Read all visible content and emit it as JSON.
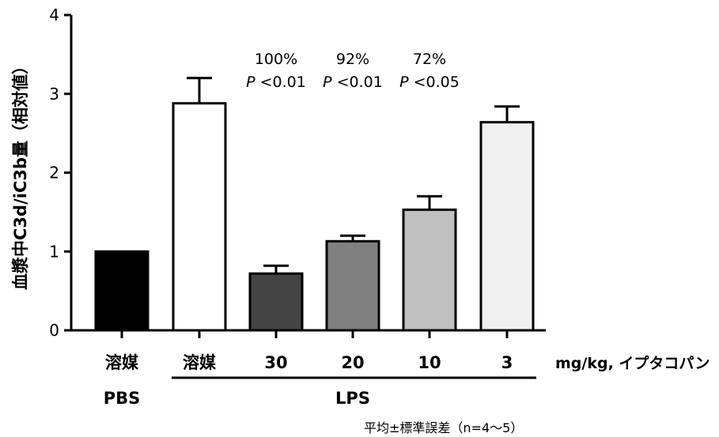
{
  "chart_data": {
    "type": "bar",
    "categories": [
      "溶媒",
      "溶媒",
      "30",
      "20",
      "10",
      "3"
    ],
    "values": [
      1.0,
      2.88,
      0.72,
      1.13,
      1.53,
      2.64
    ],
    "errors": [
      0,
      0.32,
      0.1,
      0.07,
      0.17,
      0.2
    ],
    "bar_colors": [
      "#000000",
      "#ffffff",
      "#444444",
      "#808080",
      "#c0c0c0",
      "#f0f0f0"
    ],
    "ylim": [
      0,
      4
    ],
    "yticks": [
      "0",
      "1",
      "2",
      "3",
      "4"
    ],
    "ylabel": "血漿中C3d/iC3b量（相対値）",
    "xunit_label": "mg/kg, イプタコパン",
    "group_labels": [
      "PBS",
      "LPS"
    ],
    "annotations": [
      {
        "percent": "100%",
        "p_symbol": "P",
        "p_rest": "<0.01"
      },
      {
        "percent": "92%",
        "p_symbol": "P",
        "p_rest": "<0.01"
      },
      {
        "percent": "72%",
        "p_symbol": "P",
        "p_rest": "<0.05"
      }
    ],
    "footnote": "平均±標準誤差（n=4〜5）"
  }
}
